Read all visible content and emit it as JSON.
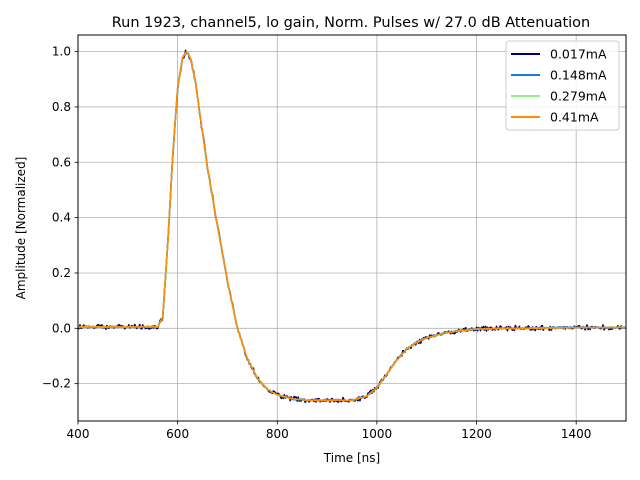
{
  "chart_data": {
    "type": "line",
    "title": "Run 1923, channel5, lo gain, Norm. Pulses w/ 27.0 dB Attenuation",
    "xlabel": "Time [ns]",
    "ylabel": "Amplitude [Normalized]",
    "xlim": [
      400,
      1500
    ],
    "ylim": [
      -0.335,
      1.06
    ],
    "xticks": [
      400,
      600,
      800,
      1000,
      1200,
      1400
    ],
    "yticks": [
      -0.2,
      0.0,
      0.2,
      0.4,
      0.6,
      0.8,
      1.0
    ],
    "ytick_labels": [
      "−0.2",
      "0.0",
      "0.2",
      "0.4",
      "0.6",
      "0.8",
      "1.0"
    ],
    "grid": true,
    "legend_position": "top-right",
    "pulse_shape": {
      "x": [
        400,
        560,
        570,
        580,
        590,
        600,
        610,
        618,
        625,
        635,
        645,
        660,
        680,
        700,
        720,
        740,
        760,
        780,
        800,
        830,
        860,
        900,
        950,
        980,
        1000,
        1020,
        1040,
        1060,
        1080,
        1100,
        1130,
        1160,
        1200,
        1250,
        1300,
        1400,
        1500
      ],
      "y": [
        0.005,
        0.005,
        0.04,
        0.3,
        0.62,
        0.87,
        0.98,
        1.0,
        0.98,
        0.9,
        0.77,
        0.58,
        0.37,
        0.17,
        0.0,
        -0.11,
        -0.18,
        -0.22,
        -0.24,
        -0.255,
        -0.26,
        -0.26,
        -0.26,
        -0.245,
        -0.215,
        -0.165,
        -0.115,
        -0.075,
        -0.05,
        -0.035,
        -0.02,
        -0.01,
        -0.003,
        0.0,
        0.0,
        0.003,
        0.003
      ]
    },
    "series": [
      {
        "name": "0.017mA",
        "color": "#00006e",
        "noise": 0.007
      },
      {
        "name": "0.148mA",
        "color": "#1f77e0",
        "noise": 0.0025
      },
      {
        "name": "0.279mA",
        "color": "#90ee80",
        "noise": 0.0015
      },
      {
        "name": "0.41mA",
        "color": "#ff8c00",
        "noise": 0.001
      }
    ]
  }
}
